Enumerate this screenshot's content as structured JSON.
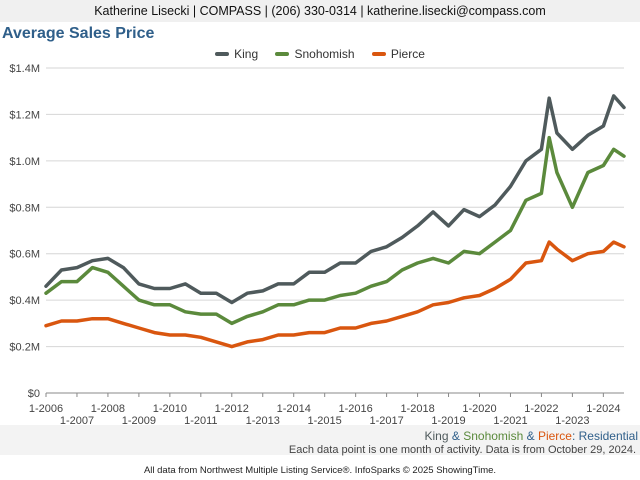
{
  "header": {
    "contact": "Katherine Lisecki | COMPASS | (206) 330-0314 | katherine.lisecki@compass.com"
  },
  "title": "Average Sales Price",
  "colors": {
    "king": "#4f5a5c",
    "snohomish": "#5b8a3c",
    "pierce": "#d9560f",
    "title": "#2f5f8a"
  },
  "caption": {
    "king": "King",
    "amp1": " & ",
    "snohomish": "Snohomish",
    "amp2": " & ",
    "pierce": "Pierce",
    "colon": ": ",
    "residential": "Residential"
  },
  "note": "Each data point is one month of activity. Data is from October 29, 2024.",
  "credit": "All data from Northwest Multiple Listing Service®. InfoSparks © 2025 ShowingTime.",
  "chart_data": {
    "type": "line",
    "title": "Average Sales Price",
    "y_tick_labels": [
      "$0",
      "$0.2M",
      "$0.4M",
      "$0.6M",
      "$0.8M",
      "$1.0M",
      "$1.2M",
      "$1.4M"
    ],
    "ylim": [
      0,
      1400000
    ],
    "x_tick_labels_upper": [
      "1-2006",
      "1-2008",
      "1-2010",
      "1-2012",
      "1-2014",
      "1-2016",
      "1-2018",
      "1-2020",
      "1-2022",
      "1-2024"
    ],
    "x_tick_labels_lower": [
      "1-2007",
      "1-2009",
      "1-2011",
      "1-2013",
      "1-2015",
      "1-2017",
      "1-2019",
      "1-2021",
      "1-2023"
    ],
    "xlim": [
      "2006-01",
      "2024-09"
    ],
    "grid": true,
    "legend_position": "top-center",
    "series": [
      {
        "name": "King",
        "points": [
          [
            "2006-01",
            460000
          ],
          [
            "2006-07",
            530000
          ],
          [
            "2007-01",
            540000
          ],
          [
            "2007-07",
            570000
          ],
          [
            "2008-01",
            580000
          ],
          [
            "2008-07",
            540000
          ],
          [
            "2009-01",
            470000
          ],
          [
            "2009-07",
            450000
          ],
          [
            "2010-01",
            450000
          ],
          [
            "2010-07",
            470000
          ],
          [
            "2011-01",
            430000
          ],
          [
            "2011-07",
            430000
          ],
          [
            "2012-01",
            390000
          ],
          [
            "2012-07",
            430000
          ],
          [
            "2013-01",
            440000
          ],
          [
            "2013-07",
            470000
          ],
          [
            "2014-01",
            470000
          ],
          [
            "2014-07",
            520000
          ],
          [
            "2015-01",
            520000
          ],
          [
            "2015-07",
            560000
          ],
          [
            "2016-01",
            560000
          ],
          [
            "2016-07",
            610000
          ],
          [
            "2017-01",
            630000
          ],
          [
            "2017-07",
            670000
          ],
          [
            "2018-01",
            720000
          ],
          [
            "2018-07",
            780000
          ],
          [
            "2019-01",
            720000
          ],
          [
            "2019-07",
            790000
          ],
          [
            "2020-01",
            760000
          ],
          [
            "2020-07",
            810000
          ],
          [
            "2021-01",
            890000
          ],
          [
            "2021-07",
            1000000
          ],
          [
            "2022-01",
            1050000
          ],
          [
            "2022-04",
            1270000
          ],
          [
            "2022-07",
            1120000
          ],
          [
            "2023-01",
            1050000
          ],
          [
            "2023-07",
            1110000
          ],
          [
            "2024-01",
            1150000
          ],
          [
            "2024-05",
            1280000
          ],
          [
            "2024-09",
            1230000
          ]
        ]
      },
      {
        "name": "Snohomish",
        "points": [
          [
            "2006-01",
            430000
          ],
          [
            "2006-07",
            480000
          ],
          [
            "2007-01",
            480000
          ],
          [
            "2007-07",
            540000
          ],
          [
            "2008-01",
            520000
          ],
          [
            "2008-07",
            460000
          ],
          [
            "2009-01",
            400000
          ],
          [
            "2009-07",
            380000
          ],
          [
            "2010-01",
            380000
          ],
          [
            "2010-07",
            350000
          ],
          [
            "2011-01",
            340000
          ],
          [
            "2011-07",
            340000
          ],
          [
            "2012-01",
            300000
          ],
          [
            "2012-07",
            330000
          ],
          [
            "2013-01",
            350000
          ],
          [
            "2013-07",
            380000
          ],
          [
            "2014-01",
            380000
          ],
          [
            "2014-07",
            400000
          ],
          [
            "2015-01",
            400000
          ],
          [
            "2015-07",
            420000
          ],
          [
            "2016-01",
            430000
          ],
          [
            "2016-07",
            460000
          ],
          [
            "2017-01",
            480000
          ],
          [
            "2017-07",
            530000
          ],
          [
            "2018-01",
            560000
          ],
          [
            "2018-07",
            580000
          ],
          [
            "2019-01",
            560000
          ],
          [
            "2019-07",
            610000
          ],
          [
            "2020-01",
            600000
          ],
          [
            "2020-07",
            650000
          ],
          [
            "2021-01",
            700000
          ],
          [
            "2021-07",
            830000
          ],
          [
            "2022-01",
            860000
          ],
          [
            "2022-04",
            1100000
          ],
          [
            "2022-07",
            950000
          ],
          [
            "2023-01",
            800000
          ],
          [
            "2023-07",
            950000
          ],
          [
            "2024-01",
            980000
          ],
          [
            "2024-05",
            1050000
          ],
          [
            "2024-09",
            1020000
          ]
        ]
      },
      {
        "name": "Pierce",
        "points": [
          [
            "2006-01",
            290000
          ],
          [
            "2006-07",
            310000
          ],
          [
            "2007-01",
            310000
          ],
          [
            "2007-07",
            320000
          ],
          [
            "2008-01",
            320000
          ],
          [
            "2008-07",
            300000
          ],
          [
            "2009-01",
            280000
          ],
          [
            "2009-07",
            260000
          ],
          [
            "2010-01",
            250000
          ],
          [
            "2010-07",
            250000
          ],
          [
            "2011-01",
            240000
          ],
          [
            "2011-07",
            220000
          ],
          [
            "2012-01",
            200000
          ],
          [
            "2012-07",
            220000
          ],
          [
            "2013-01",
            230000
          ],
          [
            "2013-07",
            250000
          ],
          [
            "2014-01",
            250000
          ],
          [
            "2014-07",
            260000
          ],
          [
            "2015-01",
            260000
          ],
          [
            "2015-07",
            280000
          ],
          [
            "2016-01",
            280000
          ],
          [
            "2016-07",
            300000
          ],
          [
            "2017-01",
            310000
          ],
          [
            "2017-07",
            330000
          ],
          [
            "2018-01",
            350000
          ],
          [
            "2018-07",
            380000
          ],
          [
            "2019-01",
            390000
          ],
          [
            "2019-07",
            410000
          ],
          [
            "2020-01",
            420000
          ],
          [
            "2020-07",
            450000
          ],
          [
            "2021-01",
            490000
          ],
          [
            "2021-07",
            560000
          ],
          [
            "2022-01",
            570000
          ],
          [
            "2022-04",
            650000
          ],
          [
            "2022-07",
            620000
          ],
          [
            "2023-01",
            570000
          ],
          [
            "2023-07",
            600000
          ],
          [
            "2024-01",
            610000
          ],
          [
            "2024-05",
            650000
          ],
          [
            "2024-09",
            630000
          ]
        ]
      }
    ]
  }
}
